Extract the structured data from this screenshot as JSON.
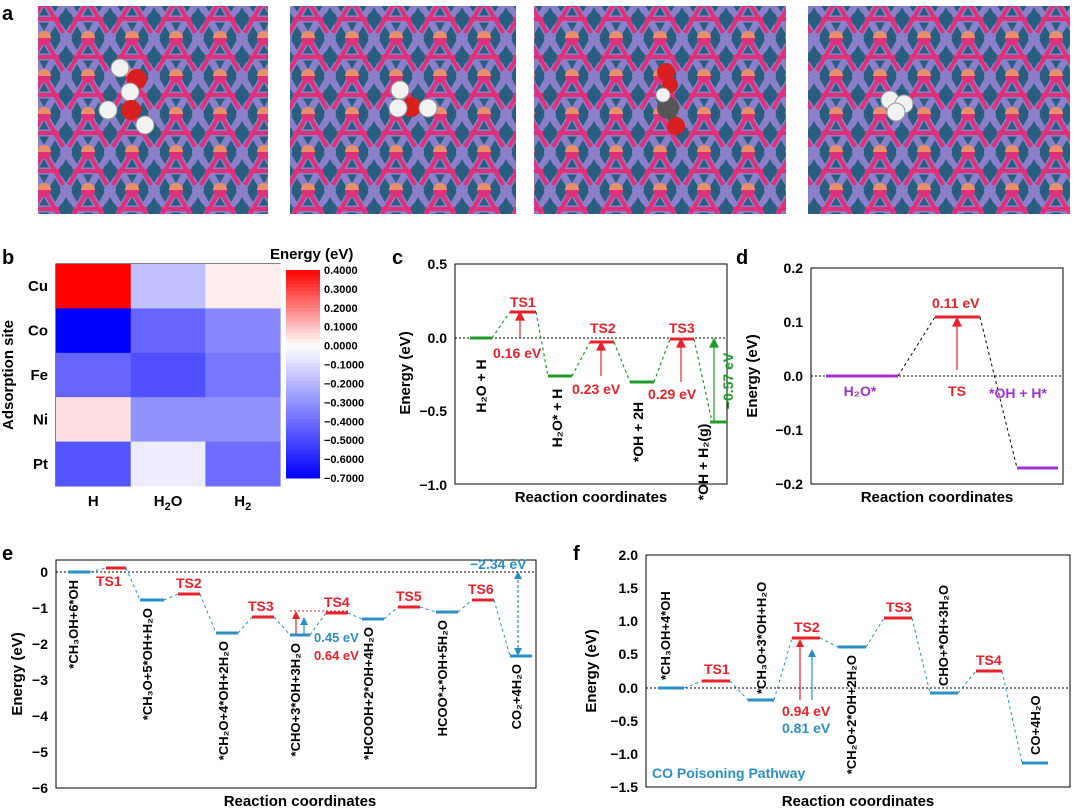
{
  "panel_labels": {
    "a": "a",
    "b": "b",
    "c": "c",
    "d": "d",
    "e": "e",
    "f": "f"
  },
  "colors": {
    "red": "#e8222a",
    "green": "#1f9a2a",
    "blue": "#2b8fc3",
    "purple": "#a030d0",
    "navy": "#2a5e80",
    "pink": "#e0307a",
    "salmon": "#e8906a",
    "lavender": "#8a7fc8"
  },
  "chart_data": [
    {
      "panel": "b",
      "type": "heatmap",
      "title": "Energy (eV)",
      "ylabel": "Adsorption site",
      "rows": [
        "Cu",
        "Co",
        "Fe",
        "Ni",
        "Pt"
      ],
      "cols": [
        "H",
        "H2O",
        "H2"
      ],
      "col_labels": [
        {
          "main": "H",
          "sub": ""
        },
        {
          "main": "H",
          "sub": "2",
          "tail": "O"
        },
        {
          "main": "H",
          "sub": "2",
          "tail": ""
        }
      ],
      "values": [
        [
          0.4,
          -0.17,
          0.03
        ],
        [
          -0.7,
          -0.42,
          -0.33
        ],
        [
          -0.42,
          -0.48,
          -0.37
        ],
        [
          0.05,
          -0.3,
          -0.3
        ],
        [
          -0.47,
          -0.05,
          -0.4
        ]
      ],
      "vmin": -0.7,
      "vmax": 0.4,
      "colorbar_ticks": [
        "0.4000",
        "0.3000",
        "0.2000",
        "0.1000",
        "0.0000",
        "−0.1000",
        "−0.2000",
        "−0.3000",
        "−0.4000",
        "−0.5000",
        "−0.6000",
        "−0.7000"
      ]
    },
    {
      "panel": "c",
      "type": "line",
      "ylabel": "Energy (eV)",
      "xlabel": "Reaction coordinates",
      "ylim": [
        -1.0,
        0.5
      ],
      "yticks": [
        "0.5",
        "0.0",
        "−0.5",
        "−1.0"
      ],
      "levels": [
        {
          "y": 0.0,
          "kind": "state",
          "label": "H₂O + H"
        },
        {
          "y": 0.16,
          "kind": "ts",
          "label": "TS1"
        },
        {
          "y": -0.26,
          "kind": "state",
          "label": "H₂O* + H"
        },
        {
          "y": -0.03,
          "kind": "ts",
          "label": "TS2"
        },
        {
          "y": -0.3,
          "kind": "state",
          "label": "*OH + 2H"
        },
        {
          "y": -0.01,
          "kind": "ts",
          "label": "TS3"
        },
        {
          "y": -0.57,
          "kind": "state",
          "label": "*OH + H₂(g)"
        }
      ],
      "barriers": [
        "0.16 eV",
        "0.23 eV",
        "0.29 eV"
      ],
      "total": "−0.57 eV"
    },
    {
      "panel": "d",
      "type": "line",
      "ylabel": "Energy (eV)",
      "xlabel": "Reaction coordinates",
      "ylim": [
        -0.2,
        0.2
      ],
      "yticks": [
        "0.2",
        "0.1",
        "0.0",
        "−0.1",
        "−0.2"
      ],
      "levels": [
        {
          "y": 0.0,
          "kind": "state",
          "label": "H₂O*"
        },
        {
          "y": 0.11,
          "kind": "ts",
          "label": "TS"
        },
        {
          "y": -0.17,
          "kind": "state",
          "label": "*OH + H*"
        }
      ],
      "barrier": "0.11 eV"
    },
    {
      "panel": "e",
      "type": "line",
      "ylabel": "Energy (eV)",
      "xlabel": "Reaction coordinates",
      "ylim": [
        -6,
        0.5
      ],
      "yticks": [
        "0",
        "−1",
        "−2",
        "−3",
        "−4",
        "−5",
        "−6"
      ],
      "levels": [
        {
          "y": 0.0,
          "kind": "state",
          "label": "*CH₃OH+6*OH"
        },
        {
          "y": 0.1,
          "kind": "ts",
          "label": "TS1"
        },
        {
          "y": -0.75,
          "kind": "state",
          "label": "*CH₃O+5*OH+H₂O"
        },
        {
          "y": -0.6,
          "kind": "ts",
          "label": "TS2"
        },
        {
          "y": -1.65,
          "kind": "state",
          "label": "*CH₂O+4*OH+2H₂O"
        },
        {
          "y": -1.23,
          "kind": "ts",
          "label": "TS3"
        },
        {
          "y": -1.72,
          "kind": "state",
          "label": "*CHO+3*OH+3H₂O"
        },
        {
          "y": -1.1,
          "kind": "ts",
          "label": "TS4"
        },
        {
          "y": -1.3,
          "kind": "state",
          "label": "*HCOOH+2*OH+4H₂O"
        },
        {
          "y": -0.95,
          "kind": "ts",
          "label": "TS5"
        },
        {
          "y": -1.1,
          "kind": "state",
          "label": "HCOO*+*OH+5H₂O"
        },
        {
          "y": -0.77,
          "kind": "ts",
          "label": "TS6"
        },
        {
          "y": -2.34,
          "kind": "state",
          "label": "CO₂+4H₂O"
        }
      ],
      "annotations": [
        "0.45 eV",
        "0.64 eV",
        "−2.34 eV"
      ]
    },
    {
      "panel": "f",
      "type": "line",
      "ylabel": "Energy (eV)",
      "xlabel": "Reaction coordinates",
      "ylim": [
        -1.5,
        2.0
      ],
      "yticks": [
        "2.0",
        "1.5",
        "1.0",
        "0.5",
        "0.0",
        "−0.5",
        "−1.0",
        "−1.5"
      ],
      "levels": [
        {
          "y": 0.0,
          "kind": "state",
          "label": "*CH₃OH+4*OH"
        },
        {
          "y": 0.1,
          "kind": "ts",
          "label": "TS1"
        },
        {
          "y": -0.18,
          "kind": "state",
          "label": "*CH₃O+3*OH+H₂O"
        },
        {
          "y": 0.75,
          "kind": "ts",
          "label": "TS2"
        },
        {
          "y": 0.62,
          "kind": "state",
          "label": "*CH₂O+2*OH+2H₂O"
        },
        {
          "y": 1.05,
          "kind": "ts",
          "label": "TS3"
        },
        {
          "y": -0.08,
          "kind": "state",
          "label": "CHO+*OH+3H₂O"
        },
        {
          "y": 0.25,
          "kind": "ts",
          "label": "TS4"
        },
        {
          "y": -1.13,
          "kind": "state",
          "label": "CO+4H₂O"
        }
      ],
      "annotations": [
        "0.94 eV",
        "0.81 eV"
      ],
      "pathway": "CO Poisoning Pathway"
    }
  ]
}
